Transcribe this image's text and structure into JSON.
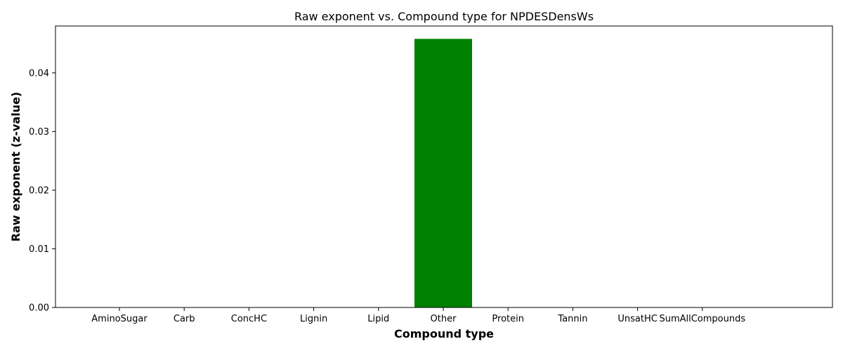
{
  "chart_data": {
    "type": "bar",
    "title": "Raw exponent vs. Compound type for NPDESDensWs",
    "xlabel": "Compound type",
    "ylabel": "Raw exponent (z-value)",
    "categories": [
      "AminoSugar",
      "Carb",
      "ConcHC",
      "Lignin",
      "Lipid",
      "Other",
      "Protein",
      "Tannin",
      "UnsatHC",
      "SumAllCompounds"
    ],
    "values": [
      0,
      0,
      0,
      0,
      0,
      0.0458,
      0,
      0,
      0,
      0
    ],
    "bar_color": "#008000",
    "ylim": [
      0,
      0.048
    ],
    "yticks": [
      0.0,
      0.01,
      0.02,
      0.03,
      0.04
    ],
    "ytick_labels": [
      "0.00",
      "0.01",
      "0.02",
      "0.03",
      "0.04"
    ],
    "grid": false,
    "legend": "none"
  }
}
